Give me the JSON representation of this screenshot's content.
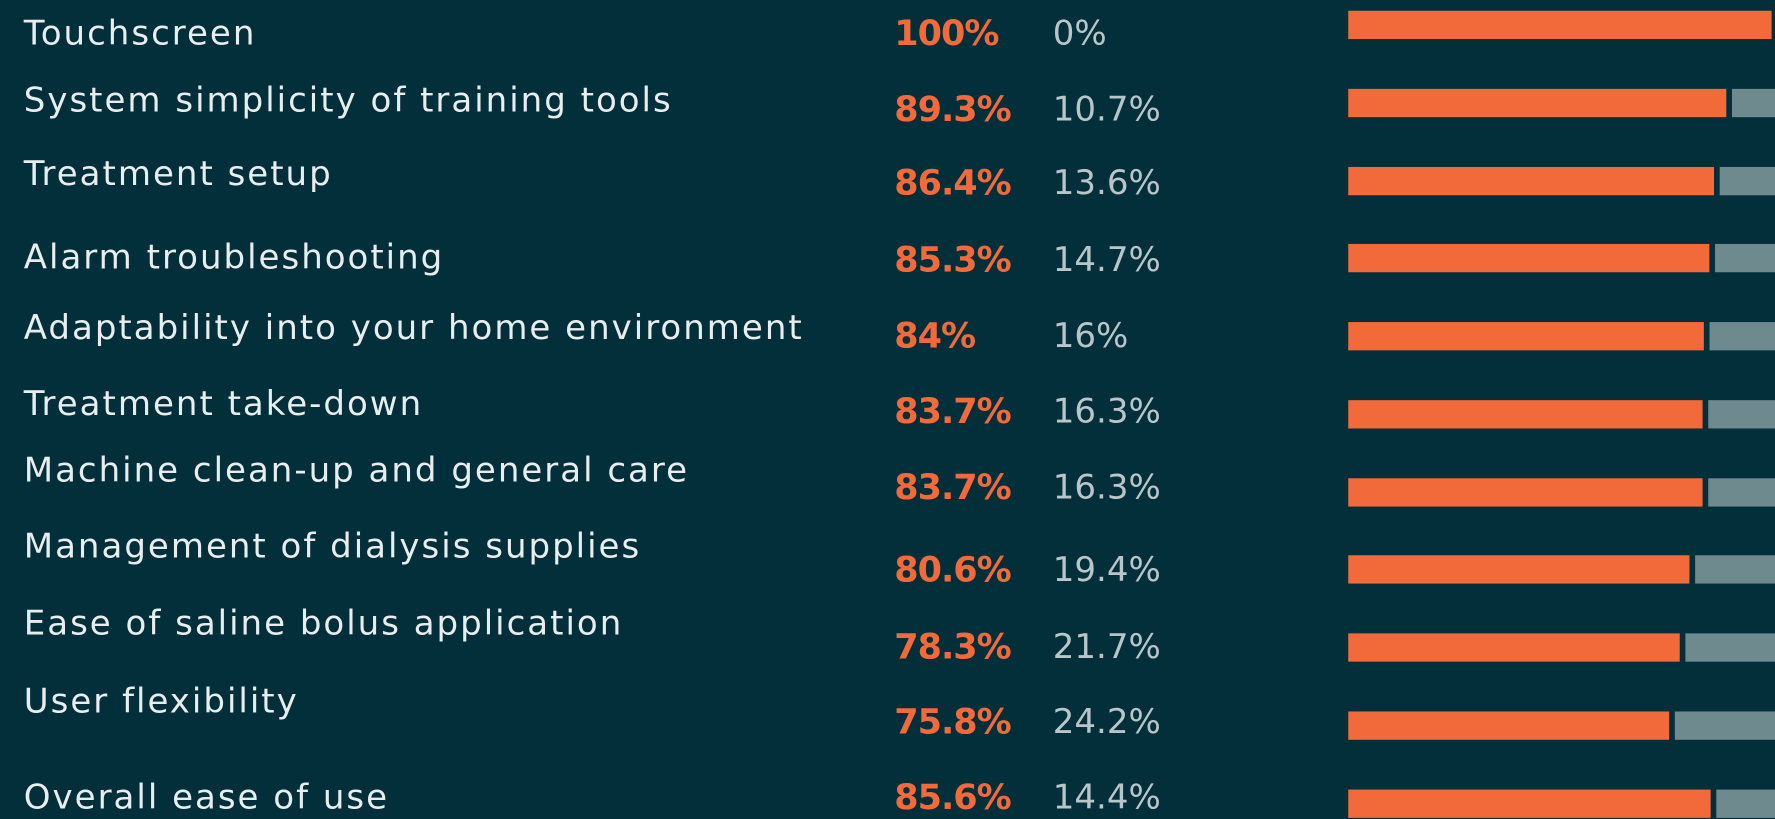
{
  "chart_data": {
    "type": "bar",
    "orientation": "horizontal",
    "stacked": true,
    "categories": [
      "Touchscreen",
      "System simplicity of training tools",
      "Treatment setup",
      "Alarm troubleshooting",
      "Adaptability into your home environment",
      "Treatment take-down",
      "Machine clean-up and general care",
      "Management of dialysis supplies",
      "Ease of saline bolus application",
      "User flexibility",
      "Overall ease of use"
    ],
    "xlim": [
      0,
      100
    ],
    "series": [
      {
        "color": "#f26a3a",
        "values": [
          100,
          89.3,
          86.4,
          85.3,
          84,
          83.7,
          83.7,
          80.6,
          78.3,
          75.8,
          85.6
        ],
        "value_labels": [
          "100%",
          "89.3%",
          "86.4%",
          "85.3%",
          "84%",
          "83.7%",
          "83.7%",
          "80.6%",
          "78.3%",
          "75.8%",
          "85.6%"
        ]
      },
      {
        "color": "#6e8a8f",
        "values": [
          0,
          10.7,
          13.6,
          14.7,
          16,
          16.3,
          16.3,
          19.4,
          21.7,
          24.2,
          14.4
        ],
        "value_labels": [
          "0%",
          "10.7%",
          "13.6%",
          "14.7%",
          "16%",
          "16.3%",
          "16.3%",
          "19.4%",
          "21.7%",
          "24.2%",
          "14.4%"
        ]
      }
    ]
  }
}
